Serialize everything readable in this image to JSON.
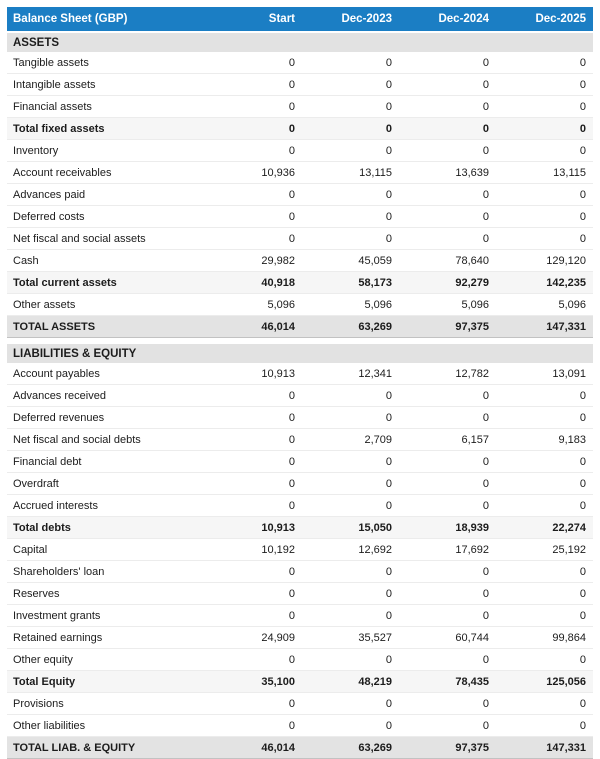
{
  "table": {
    "title": "Balance Sheet (GBP)",
    "columns": [
      "Start",
      "Dec-2023",
      "Dec-2024",
      "Dec-2025"
    ],
    "colors": {
      "header_bg": "#1b7ec4",
      "header_text": "#ffffff",
      "section_bg": "#e2e2e2",
      "subtotal_bg": "#f6f6f6",
      "grand_bg": "#e3e3e3",
      "row_border": "#ececec",
      "grand_border": "#9a9a9a",
      "text": "#1c1c1c"
    },
    "sections": [
      {
        "name": "ASSETS",
        "rows": [
          {
            "label": "Tangible assets",
            "values": [
              "0",
              "0",
              "0",
              "0"
            ],
            "style": "normal"
          },
          {
            "label": "Intangible assets",
            "values": [
              "0",
              "0",
              "0",
              "0"
            ],
            "style": "normal"
          },
          {
            "label": "Financial assets",
            "values": [
              "0",
              "0",
              "0",
              "0"
            ],
            "style": "normal"
          },
          {
            "label": "Total fixed assets",
            "values": [
              "0",
              "0",
              "0",
              "0"
            ],
            "style": "subtotal"
          },
          {
            "label": "Inventory",
            "values": [
              "0",
              "0",
              "0",
              "0"
            ],
            "style": "normal"
          },
          {
            "label": "Account receivables",
            "values": [
              "10,936",
              "13,115",
              "13,639",
              "13,115"
            ],
            "style": "normal"
          },
          {
            "label": "Advances paid",
            "values": [
              "0",
              "0",
              "0",
              "0"
            ],
            "style": "normal"
          },
          {
            "label": "Deferred costs",
            "values": [
              "0",
              "0",
              "0",
              "0"
            ],
            "style": "normal"
          },
          {
            "label": "Net fiscal and social assets",
            "values": [
              "0",
              "0",
              "0",
              "0"
            ],
            "style": "normal"
          },
          {
            "label": "Cash",
            "values": [
              "29,982",
              "45,059",
              "78,640",
              "129,120"
            ],
            "style": "normal"
          },
          {
            "label": "Total current assets",
            "values": [
              "40,918",
              "58,173",
              "92,279",
              "142,235"
            ],
            "style": "subtotal"
          },
          {
            "label": "Other assets",
            "values": [
              "5,096",
              "5,096",
              "5,096",
              "5,096"
            ],
            "style": "normal"
          },
          {
            "label": "TOTAL ASSETS",
            "values": [
              "46,014",
              "63,269",
              "97,375",
              "147,331"
            ],
            "style": "grand"
          }
        ]
      },
      {
        "name": "LIABILITIES & EQUITY",
        "rows": [
          {
            "label": "Account payables",
            "values": [
              "10,913",
              "12,341",
              "12,782",
              "13,091"
            ],
            "style": "normal"
          },
          {
            "label": "Advances received",
            "values": [
              "0",
              "0",
              "0",
              "0"
            ],
            "style": "normal"
          },
          {
            "label": "Deferred revenues",
            "values": [
              "0",
              "0",
              "0",
              "0"
            ],
            "style": "normal"
          },
          {
            "label": "Net fiscal and social debts",
            "values": [
              "0",
              "2,709",
              "6,157",
              "9,183"
            ],
            "style": "normal"
          },
          {
            "label": "Financial debt",
            "values": [
              "0",
              "0",
              "0",
              "0"
            ],
            "style": "normal"
          },
          {
            "label": "Overdraft",
            "values": [
              "0",
              "0",
              "0",
              "0"
            ],
            "style": "normal"
          },
          {
            "label": "Accrued interests",
            "values": [
              "0",
              "0",
              "0",
              "0"
            ],
            "style": "normal"
          },
          {
            "label": "Total debts",
            "values": [
              "10,913",
              "15,050",
              "18,939",
              "22,274"
            ],
            "style": "subtotal"
          },
          {
            "label": "Capital",
            "values": [
              "10,192",
              "12,692",
              "17,692",
              "25,192"
            ],
            "style": "normal"
          },
          {
            "label": "Shareholders' loan",
            "values": [
              "0",
              "0",
              "0",
              "0"
            ],
            "style": "normal"
          },
          {
            "label": "Reserves",
            "values": [
              "0",
              "0",
              "0",
              "0"
            ],
            "style": "normal"
          },
          {
            "label": "Investment grants",
            "values": [
              "0",
              "0",
              "0",
              "0"
            ],
            "style": "normal"
          },
          {
            "label": "Retained earnings",
            "values": [
              "24,909",
              "35,527",
              "60,744",
              "99,864"
            ],
            "style": "normal"
          },
          {
            "label": "Other equity",
            "values": [
              "0",
              "0",
              "0",
              "0"
            ],
            "style": "normal"
          },
          {
            "label": "Total Equity",
            "values": [
              "35,100",
              "48,219",
              "78,435",
              "125,056"
            ],
            "style": "subtotal"
          },
          {
            "label": "Provisions",
            "values": [
              "0",
              "0",
              "0",
              "0"
            ],
            "style": "normal"
          },
          {
            "label": "Other liabilities",
            "values": [
              "0",
              "0",
              "0",
              "0"
            ],
            "style": "normal"
          },
          {
            "label": "TOTAL LIAB. & EQUITY",
            "values": [
              "46,014",
              "63,269",
              "97,375",
              "147,331"
            ],
            "style": "grand"
          }
        ]
      }
    ]
  }
}
